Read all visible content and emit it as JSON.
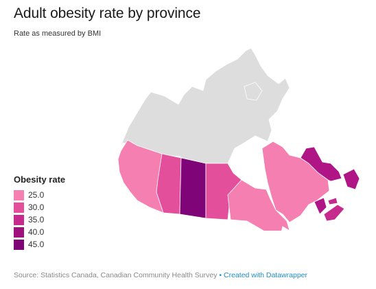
{
  "title": "Adult obesity rate by province",
  "subtitle": "Rate as measured by BMI",
  "legend": {
    "title": "Obesity rate",
    "items": [
      {
        "label": "25.0",
        "color": "#f47fb0"
      },
      {
        "label": "30.0",
        "color": "#e34f9a"
      },
      {
        "label": "35.0",
        "color": "#c62a8c"
      },
      {
        "label": "40.0",
        "color": "#a0107d"
      },
      {
        "label": "45.0",
        "color": "#7e0478"
      }
    ]
  },
  "regions": [
    {
      "name": "British Columbia",
      "color": "#f47fb0"
    },
    {
      "name": "Alberta",
      "color": "#e34f9a"
    },
    {
      "name": "Saskatchewan",
      "color": "#7e0478"
    },
    {
      "name": "Manitoba",
      "color": "#e34f9a"
    },
    {
      "name": "Ontario",
      "color": "#f47fb0"
    },
    {
      "name": "Quebec",
      "color": "#f47fb0"
    },
    {
      "name": "Newfoundland and Labrador",
      "color": "#b01585"
    },
    {
      "name": "New Brunswick",
      "color": "#b01585"
    },
    {
      "name": "Nova Scotia",
      "color": "#c62a8c"
    },
    {
      "name": "Prince Edward Island",
      "color": "#c62a8c"
    },
    {
      "name": "Territories",
      "color": "#dddddd"
    }
  ],
  "footer": {
    "source": "Source: Statistics Canada, Canadian Community Health Survey",
    "separator": "•",
    "credit": "Created with Datawrapper"
  }
}
